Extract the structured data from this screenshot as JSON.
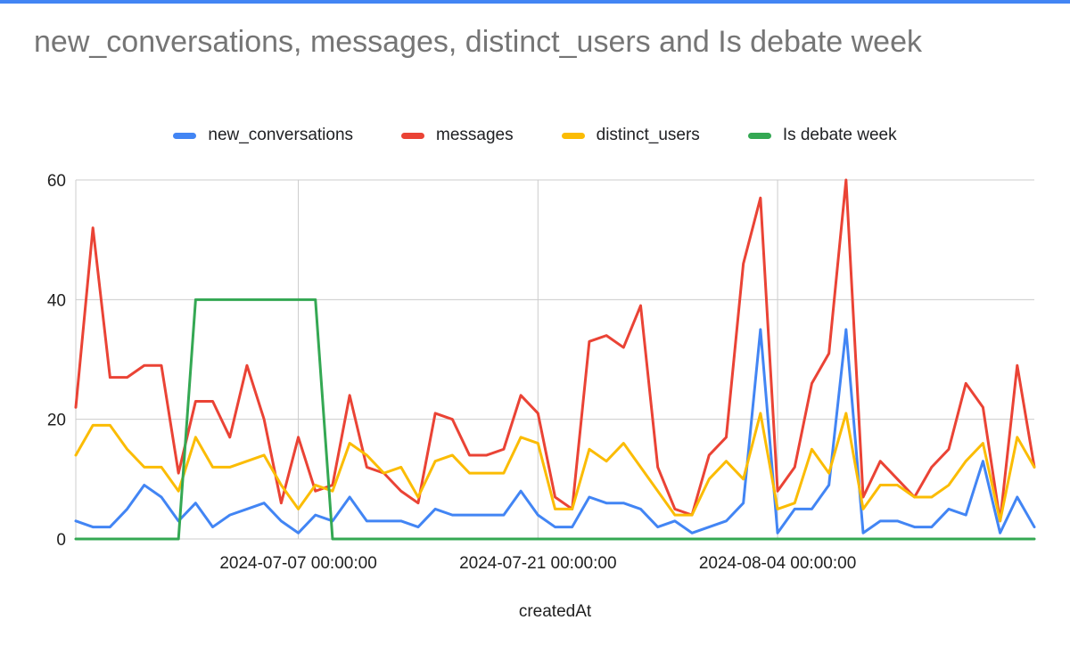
{
  "page": {
    "top_bar_color": "#4285F4",
    "background_color": "#FFFFFF"
  },
  "chart_data": {
    "type": "line",
    "title": "new_conversations, messages, distinct_users and Is debate week",
    "xlabel": "createdAt",
    "ylabel": "",
    "ylim": [
      0,
      60
    ],
    "y_ticks": [
      0,
      20,
      40,
      60
    ],
    "grid_color": "#cccccc",
    "axis_label_color": "#1f1f1f",
    "title_color": "#757575",
    "legend_position": "top",
    "x_tick_indices": [
      13,
      27,
      41
    ],
    "x_tick_labels": [
      "2024-07-07 00:00:00",
      "2024-07-21 00:00:00",
      "2024-08-04 00:00:00"
    ],
    "x": [
      "2024-06-24",
      "2024-06-25",
      "2024-06-26",
      "2024-06-27",
      "2024-06-28",
      "2024-06-29",
      "2024-06-30",
      "2024-07-01",
      "2024-07-02",
      "2024-07-03",
      "2024-07-04",
      "2024-07-05",
      "2024-07-06",
      "2024-07-07",
      "2024-07-08",
      "2024-07-09",
      "2024-07-10",
      "2024-07-11",
      "2024-07-12",
      "2024-07-13",
      "2024-07-14",
      "2024-07-15",
      "2024-07-16",
      "2024-07-17",
      "2024-07-18",
      "2024-07-19",
      "2024-07-20",
      "2024-07-21",
      "2024-07-22",
      "2024-07-23",
      "2024-07-24",
      "2024-07-25",
      "2024-07-26",
      "2024-07-27",
      "2024-07-28",
      "2024-07-29",
      "2024-07-30",
      "2024-07-31",
      "2024-08-01",
      "2024-08-02",
      "2024-08-03",
      "2024-08-04",
      "2024-08-05",
      "2024-08-06",
      "2024-08-07",
      "2024-08-08",
      "2024-08-09",
      "2024-08-10",
      "2024-08-11",
      "2024-08-12",
      "2024-08-13",
      "2024-08-14",
      "2024-08-15",
      "2024-08-16",
      "2024-08-17",
      "2024-08-18",
      "2024-08-19"
    ],
    "series": [
      {
        "name": "new_conversations",
        "color": "#4285F4",
        "values": [
          3,
          2,
          2,
          5,
          9,
          7,
          3,
          6,
          2,
          4,
          5,
          6,
          3,
          1,
          4,
          3,
          7,
          3,
          3,
          3,
          2,
          5,
          4,
          4,
          4,
          4,
          8,
          4,
          2,
          2,
          7,
          6,
          6,
          5,
          2,
          3,
          1,
          2,
          3,
          6,
          35,
          1,
          5,
          5,
          9,
          35,
          1,
          3,
          3,
          2,
          2,
          5,
          4,
          13,
          1,
          7,
          2
        ]
      },
      {
        "name": "messages",
        "color": "#EA4335",
        "values": [
          22,
          52,
          27,
          27,
          29,
          29,
          11,
          23,
          23,
          17,
          29,
          20,
          6,
          17,
          8,
          9,
          24,
          12,
          11,
          8,
          6,
          21,
          20,
          14,
          14,
          15,
          24,
          21,
          7,
          5,
          33,
          34,
          32,
          39,
          12,
          5,
          4,
          14,
          17,
          46,
          57,
          8,
          12,
          26,
          31,
          60,
          7,
          13,
          10,
          7,
          12,
          15,
          26,
          22,
          3,
          29,
          12
        ]
      },
      {
        "name": "distinct_users",
        "color": "#FBBC04",
        "values": [
          14,
          19,
          19,
          15,
          12,
          12,
          8,
          17,
          12,
          12,
          13,
          14,
          9,
          5,
          9,
          8,
          16,
          14,
          11,
          12,
          7,
          13,
          14,
          11,
          11,
          11,
          17,
          16,
          5,
          5,
          15,
          13,
          16,
          12,
          8,
          4,
          4,
          10,
          13,
          10,
          21,
          5,
          6,
          15,
          11,
          21,
          5,
          9,
          9,
          7,
          7,
          9,
          13,
          16,
          3,
          17,
          12
        ]
      },
      {
        "name": "Is debate week",
        "color": "#34A853",
        "values": [
          0,
          0,
          0,
          0,
          0,
          0,
          0,
          40,
          40,
          40,
          40,
          40,
          40,
          40,
          40,
          0,
          0,
          0,
          0,
          0,
          0,
          0,
          0,
          0,
          0,
          0,
          0,
          0,
          0,
          0,
          0,
          0,
          0,
          0,
          0,
          0,
          0,
          0,
          0,
          0,
          0,
          0,
          0,
          0,
          0,
          0,
          0,
          0,
          0,
          0,
          0,
          0,
          0,
          0,
          0,
          0,
          0
        ]
      }
    ]
  }
}
